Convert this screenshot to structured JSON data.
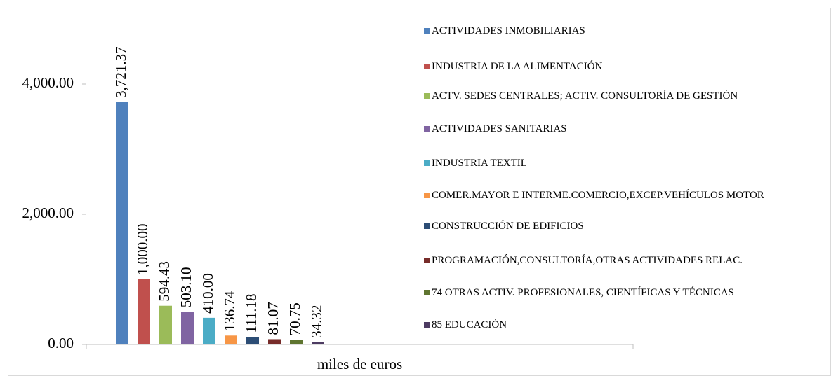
{
  "chart_data": {
    "type": "bar",
    "categories": [
      "miles de euros"
    ],
    "series": [
      {
        "name": "ACTIVIDADES INMOBILIARIAS",
        "color": "#4f81bd",
        "values": [
          3721.37
        ],
        "value_labels": [
          "3,721.37"
        ]
      },
      {
        "name": "INDUSTRIA DE LA ALIMENTACIÓN",
        "color": "#c0504d",
        "values": [
          1000.0
        ],
        "value_labels": [
          "1,000.00"
        ]
      },
      {
        "name": "ACTV. SEDES CENTRALES; ACTIV. CONSULTORÍA DE GESTIÓN",
        "color": "#9bbb59",
        "values": [
          594.43
        ],
        "value_labels": [
          "594.43"
        ]
      },
      {
        "name": "ACTIVIDADES SANITARIAS",
        "color": "#8064a2",
        "values": [
          503.1
        ],
        "value_labels": [
          "503.10"
        ]
      },
      {
        "name": "INDUSTRIA TEXTIL",
        "color": "#4bacc6",
        "values": [
          410.0
        ],
        "value_labels": [
          "410.00"
        ]
      },
      {
        "name": "COMER.MAYOR E INTERME.COMERCIO,EXCEP.VEHÍCULOS MOTOR",
        "color": "#f79646",
        "values": [
          136.74
        ],
        "value_labels": [
          "136.74"
        ]
      },
      {
        "name": "CONSTRUCCIÓN DE EDIFICIOS",
        "color": "#2c4d75",
        "values": [
          111.18
        ],
        "value_labels": [
          "111.18"
        ]
      },
      {
        "name": "PROGRAMACIÓN,CONSULTORÍA,OTRAS ACTIVIDADES RELAC.",
        "color": "#772c2a",
        "values": [
          81.07
        ],
        "value_labels": [
          "81.07"
        ]
      },
      {
        "name": "74 OTRAS ACTIV. PROFESIONALES, CIENTÍFICAS Y TÉCNICAS",
        "color": "#5f7530",
        "values": [
          70.75
        ],
        "value_labels": [
          "70.75"
        ]
      },
      {
        "name": "85 EDUCACIÓN",
        "color": "#4d3b62",
        "values": [
          34.32
        ],
        "value_labels": [
          "34.32"
        ]
      }
    ],
    "ylim": [
      0,
      4000
    ],
    "yticks": [
      {
        "value": 0,
        "label": "0.00"
      },
      {
        "value": 2000,
        "label": "2,000.00"
      },
      {
        "value": 4000,
        "label": "4,000.00"
      }
    ],
    "legend": "right"
  }
}
